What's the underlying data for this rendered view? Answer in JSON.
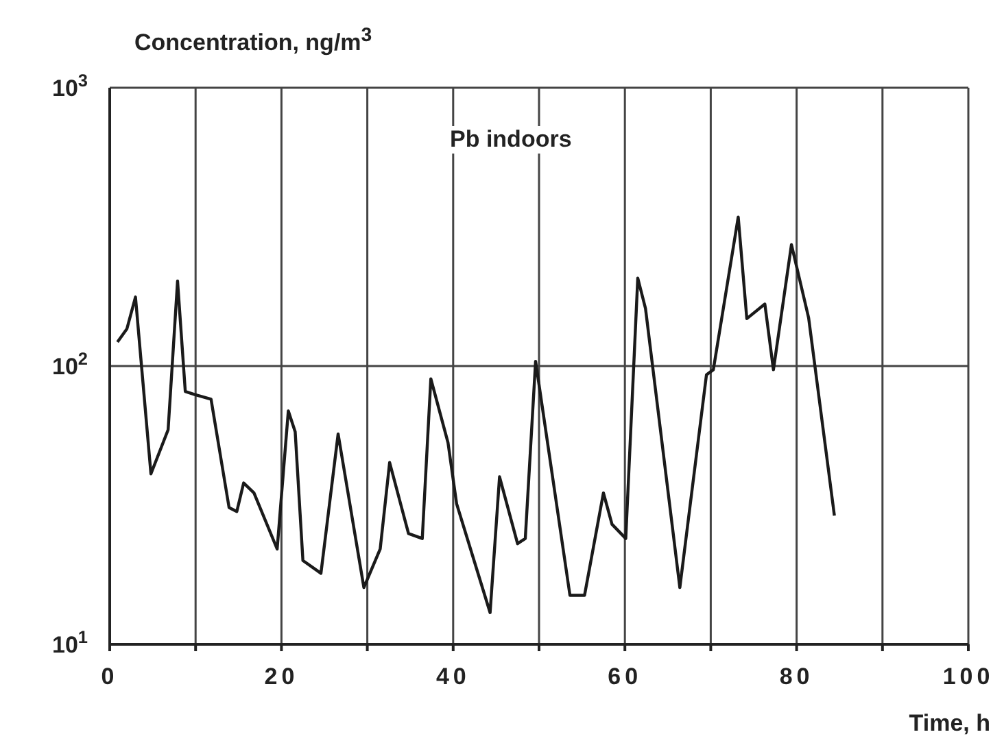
{
  "chart_data": {
    "type": "line",
    "ylabel": "Concentration, ng/m$^{3}$",
    "xlabel": "Time, h",
    "annotations": [
      "Pb indoors"
    ],
    "log": "y",
    "grid": true,
    "marker": "none",
    "line_style": "solid",
    "xlim": [
      0,
      100
    ],
    "xticks": [
      0,
      {
        "value": 10,
        "label": null
      },
      20,
      {
        "value": 30,
        "label": null
      },
      40,
      {
        "value": 50,
        "label": null
      },
      60,
      {
        "value": 70,
        "label": null
      },
      80,
      {
        "value": 90,
        "label": null
      },
      100
    ],
    "ylim": [
      10,
      1000
    ],
    "yticks": [
      {
        "value": 10,
        "label": "10$^{1}$"
      },
      {
        "value": 100,
        "label": "10$^{2}$"
      },
      {
        "value": 1000,
        "label": "10$^{3}$"
      }
    ],
    "series": [
      {
        "color": "#1a1a1a",
        "x": [
          0.9,
          2.0,
          3.0,
          4.8,
          6.8,
          7.9,
          8.8,
          9.9,
          11.8,
          13.9,
          14.8,
          15.6,
          16.8,
          19.5,
          20.8,
          21.6,
          22.5,
          24.6,
          26.6,
          29.6,
          31.5,
          32.6,
          34.8,
          36.4,
          37.4,
          39.4,
          40.4,
          44.3,
          45.4,
          47.5,
          48.4,
          49.6,
          53.6,
          55.3,
          57.5,
          58.5,
          60.1,
          61.5,
          62.4,
          66.4,
          69.5,
          70.3,
          73.2,
          74.2,
          76.3,
          77.3,
          79.4,
          81.4,
          84.4
        ],
        "values": [
          122,
          136,
          177,
          41,
          59,
          202,
          81,
          79,
          76,
          31,
          30,
          38,
          35,
          22,
          69,
          58,
          20,
          18,
          57,
          16,
          22,
          45,
          25,
          24,
          90,
          53,
          32,
          13,
          40,
          23,
          24,
          104,
          15,
          15,
          35,
          27,
          24,
          207,
          161,
          16,
          93,
          97,
          343,
          148,
          167,
          97,
          273,
          149,
          29
        ]
      }
    ]
  }
}
